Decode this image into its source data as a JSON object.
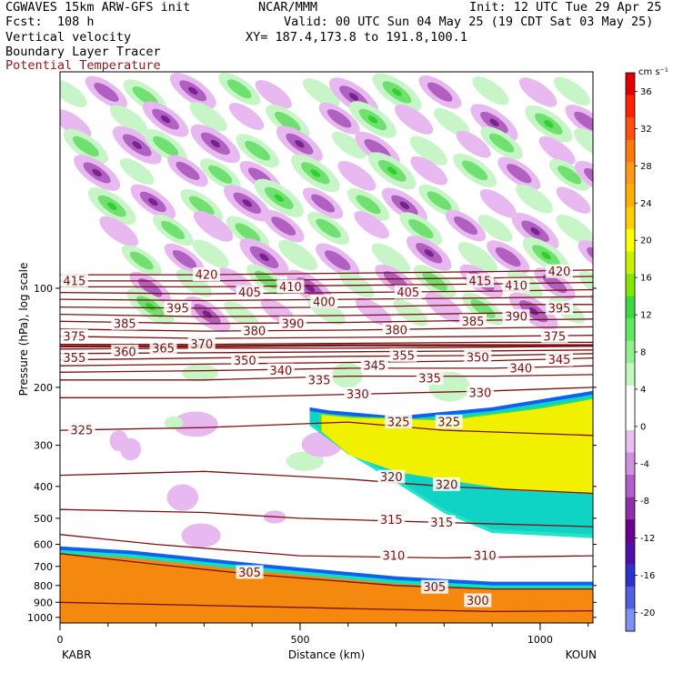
{
  "header": {
    "model": "CGWAVES 15km ARW-GFS init",
    "org": "NCAR/MMM",
    "init": "Init: 12 UTC Tue 29 Apr 25",
    "fcst": "Fcst:  108 h",
    "valid": "Valid: 00 UTC Sun 04 May 25 (19 CDT Sat 03 May 25)",
    "field1": "Vertical velocity",
    "xy": "XY= 187.4,173.8 to 191.8,100.1",
    "field2": "Boundary Layer Tracer",
    "field3": "Potential Temperature"
  },
  "colors": {
    "theta": "#7a1010",
    "tracer_orange": "#f5880f",
    "tracer_yellow": "#f0f000",
    "tracer_green": "#40e040",
    "tracer_cyan": "#10e0c0",
    "tracer_blue": "#1060f0",
    "w_up_light": "#c8f5c8",
    "w_up_mid": "#70e070",
    "w_up_strong": "#30d030",
    "w_down_light": "#e8b8f0",
    "w_down_mid": "#b060c0",
    "w_down_strong": "#7a2090"
  },
  "chart_data": {
    "type": "heatmap",
    "xlabel": "Distance (km)",
    "ylabel": "Pressure (hPa), log scale",
    "xlim": [
      0,
      1110
    ],
    "ylim": [
      1040,
      22
    ],
    "y_scale": "log",
    "x_ticks": [
      0,
      500,
      1000
    ],
    "x_tick_labels": [
      "0",
      "500",
      "1000"
    ],
    "y_ticks": [
      100,
      200,
      300,
      400,
      500,
      600,
      700,
      800,
      900,
      1000
    ],
    "y_tick_labels": [
      "100",
      "200",
      "300",
      "400",
      "500",
      "600",
      "700",
      "800",
      "900",
      "1000"
    ],
    "endpoints": {
      "left": "KABR",
      "right": "KOUN"
    },
    "colorbar": {
      "units": "cm s⁻¹",
      "ticks": [
        36,
        32,
        28,
        24,
        20,
        16,
        12,
        8,
        4,
        0,
        -4,
        -8,
        -12,
        -16,
        -20
      ],
      "tick_labels": [
        "36",
        "32",
        "28",
        "24",
        "20",
        "16",
        "12",
        "8",
        "4",
        "0",
        "-4",
        "-8",
        "-12",
        "-16",
        "-20"
      ],
      "colors": [
        "#e00000",
        "#ff2000",
        "#ff5010",
        "#ff7810",
        "#ff9a18",
        "#ffb000",
        "#ffd000",
        "#ffff00",
        "#c8f000",
        "#80e800",
        "#40d840",
        "#60e860",
        "#90f090",
        "#c0f8c0",
        "#ffffff",
        "#ffffff",
        "#e8c0f0",
        "#d090e0",
        "#b060c8",
        "#9030a8",
        "#6a0090",
        "#5010a8",
        "#3030d0",
        "#5060e0",
        "#8090f0"
      ]
    },
    "theta_contours": [
      {
        "value": 300,
        "label": "300",
        "points": [
          [
            0,
            900
          ],
          [
            300,
            920
          ],
          [
            600,
            940
          ],
          [
            900,
            960
          ],
          [
            1110,
            955
          ]
        ]
      },
      {
        "value": 305,
        "label": "305",
        "points": [
          [
            0,
            640
          ],
          [
            200,
            690
          ],
          [
            400,
            740
          ],
          [
            700,
            800
          ],
          [
            900,
            820
          ],
          [
            1110,
            820
          ]
        ]
      },
      {
        "value": 310,
        "label": "310",
        "points": [
          [
            0,
            560
          ],
          [
            200,
            600
          ],
          [
            500,
            650
          ],
          [
            800,
            660
          ],
          [
            1110,
            650
          ]
        ]
      },
      {
        "value": 315,
        "label": "315",
        "points": [
          [
            0,
            470
          ],
          [
            300,
            480
          ],
          [
            500,
            500
          ],
          [
            700,
            510
          ],
          [
            1110,
            530
          ]
        ]
      },
      {
        "value": 320,
        "label": "320",
        "points": [
          [
            0,
            370
          ],
          [
            300,
            360
          ],
          [
            600,
            380
          ],
          [
            800,
            400
          ],
          [
            1110,
            420
          ]
        ]
      },
      {
        "value": 325,
        "label": "325",
        "points": [
          [
            0,
            270
          ],
          [
            300,
            265
          ],
          [
            600,
            255
          ],
          [
            800,
            270
          ],
          [
            1110,
            280
          ]
        ]
      },
      {
        "value": 330,
        "label": "330",
        "points": [
          [
            0,
            215
          ],
          [
            300,
            215
          ],
          [
            600,
            210
          ],
          [
            900,
            205
          ],
          [
            1110,
            200
          ]
        ]
      },
      {
        "value": 335,
        "label": "335",
        "points": [
          [
            0,
            190
          ],
          [
            300,
            190
          ],
          [
            600,
            185
          ],
          [
            900,
            185
          ],
          [
            1110,
            183
          ]
        ]
      },
      {
        "value": 340,
        "label": "340",
        "points": [
          [
            0,
            180
          ],
          [
            300,
            178
          ],
          [
            600,
            175
          ],
          [
            900,
            175
          ],
          [
            1110,
            172
          ]
        ]
      },
      {
        "value": 345,
        "label": "345",
        "points": [
          [
            0,
            172
          ],
          [
            300,
            170
          ],
          [
            600,
            168
          ],
          [
            900,
            166
          ],
          [
            1110,
            163
          ]
        ]
      },
      {
        "value": 350,
        "label": "350",
        "points": [
          [
            0,
            165
          ],
          [
            300,
            163
          ],
          [
            600,
            161
          ],
          [
            900,
            160
          ],
          [
            1110,
            158
          ]
        ]
      },
      {
        "value": 355,
        "label": "355",
        "points": [
          [
            0,
            158
          ],
          [
            300,
            157
          ],
          [
            600,
            156
          ],
          [
            900,
            155
          ],
          [
            1110,
            154
          ]
        ]
      },
      {
        "value": 360,
        "label": "360",
        "points": [
          [
            0,
            153
          ],
          [
            300,
            152
          ],
          [
            600,
            152
          ],
          [
            900,
            151
          ],
          [
            1110,
            150
          ]
        ]
      },
      {
        "value": 365,
        "label": "365",
        "points": [
          [
            0,
            150
          ],
          [
            300,
            150
          ],
          [
            600,
            149
          ],
          [
            900,
            149
          ],
          [
            1110,
            149
          ]
        ]
      },
      {
        "value": 370,
        "label": "370",
        "points": [
          [
            0,
            148
          ],
          [
            300,
            148
          ],
          [
            600,
            147
          ],
          [
            900,
            146
          ],
          [
            1110,
            146
          ]
        ]
      },
      {
        "value": 375,
        "label": "375",
        "points": [
          [
            0,
            140
          ],
          [
            300,
            142
          ],
          [
            600,
            141
          ],
          [
            900,
            140
          ],
          [
            1110,
            139
          ]
        ]
      },
      {
        "value": 380,
        "label": "380",
        "points": [
          [
            0,
            133
          ],
          [
            300,
            135
          ],
          [
            600,
            134
          ],
          [
            900,
            132
          ],
          [
            1110,
            131
          ]
        ]
      },
      {
        "value": 385,
        "label": "385",
        "points": [
          [
            0,
            126
          ],
          [
            300,
            128
          ],
          [
            600,
            127
          ],
          [
            900,
            125
          ],
          [
            1110,
            124
          ]
        ]
      },
      {
        "value": 390,
        "label": "390",
        "points": [
          [
            0,
            120
          ],
          [
            300,
            122
          ],
          [
            600,
            121
          ],
          [
            900,
            119
          ],
          [
            1110,
            118
          ]
        ]
      },
      {
        "value": 395,
        "label": "395",
        "points": [
          [
            0,
            114
          ],
          [
            300,
            115
          ],
          [
            600,
            114
          ],
          [
            900,
            112
          ],
          [
            1110,
            112
          ]
        ]
      },
      {
        "value": 400,
        "label": "400",
        "points": [
          [
            0,
            108
          ],
          [
            300,
            109
          ],
          [
            600,
            108
          ],
          [
            900,
            107
          ],
          [
            1110,
            106
          ]
        ]
      },
      {
        "value": 405,
        "label": "405",
        "points": [
          [
            0,
            103
          ],
          [
            300,
            104
          ],
          [
            600,
            103
          ],
          [
            900,
            102
          ],
          [
            1110,
            101
          ]
        ]
      },
      {
        "value": 410,
        "label": "410",
        "points": [
          [
            0,
            99
          ],
          [
            300,
            99
          ],
          [
            600,
            98
          ],
          [
            900,
            97
          ],
          [
            1110,
            96
          ]
        ]
      },
      {
        "value": 415,
        "label": "415",
        "points": [
          [
            0,
            95
          ],
          [
            300,
            95
          ],
          [
            600,
            94
          ],
          [
            900,
            93
          ],
          [
            1110,
            92
          ]
        ]
      },
      {
        "value": 420,
        "label": "420",
        "points": [
          [
            0,
            91
          ],
          [
            300,
            91
          ],
          [
            600,
            90
          ],
          [
            900,
            89
          ],
          [
            1110,
            88
          ]
        ]
      }
    ],
    "theta_labels": [
      {
        "text": "415",
        "x": 30,
        "p": 95
      },
      {
        "text": "420",
        "x": 305,
        "p": 91
      },
      {
        "text": "405",
        "x": 395,
        "p": 103
      },
      {
        "text": "410",
        "x": 480,
        "p": 99
      },
      {
        "text": "405",
        "x": 725,
        "p": 103
      },
      {
        "text": "415",
        "x": 875,
        "p": 95
      },
      {
        "text": "410",
        "x": 950,
        "p": 98
      },
      {
        "text": "420",
        "x": 1040,
        "p": 89
      },
      {
        "text": "385",
        "x": 135,
        "p": 128
      },
      {
        "text": "395",
        "x": 245,
        "p": 115
      },
      {
        "text": "400",
        "x": 550,
        "p": 110
      },
      {
        "text": "380",
        "x": 405,
        "p": 135
      },
      {
        "text": "390",
        "x": 485,
        "p": 128
      },
      {
        "text": "380",
        "x": 700,
        "p": 134
      },
      {
        "text": "385",
        "x": 860,
        "p": 126
      },
      {
        "text": "390",
        "x": 950,
        "p": 122
      },
      {
        "text": "395",
        "x": 1040,
        "p": 115
      },
      {
        "text": "375",
        "x": 30,
        "p": 140
      },
      {
        "text": "375",
        "x": 1030,
        "p": 140
      },
      {
        "text": "370",
        "x": 295,
        "p": 148
      },
      {
        "text": "365",
        "x": 215,
        "p": 152
      },
      {
        "text": "360",
        "x": 135,
        "p": 156
      },
      {
        "text": "355",
        "x": 30,
        "p": 163
      },
      {
        "text": "350",
        "x": 385,
        "p": 166
      },
      {
        "text": "355",
        "x": 715,
        "p": 160
      },
      {
        "text": "350",
        "x": 870,
        "p": 162
      },
      {
        "text": "345",
        "x": 1040,
        "p": 165
      },
      {
        "text": "340",
        "x": 460,
        "p": 178
      },
      {
        "text": "345",
        "x": 655,
        "p": 172
      },
      {
        "text": "340",
        "x": 960,
        "p": 175
      },
      {
        "text": "335",
        "x": 540,
        "p": 190
      },
      {
        "text": "335",
        "x": 770,
        "p": 188
      },
      {
        "text": "330",
        "x": 620,
        "p": 210
      },
      {
        "text": "330",
        "x": 875,
        "p": 208
      },
      {
        "text": "325",
        "x": 45,
        "p": 270
      },
      {
        "text": "325",
        "x": 705,
        "p": 255
      },
      {
        "text": "325",
        "x": 810,
        "p": 255
      },
      {
        "text": "320",
        "x": 690,
        "p": 375
      },
      {
        "text": "320",
        "x": 805,
        "p": 395
      },
      {
        "text": "315",
        "x": 690,
        "p": 505
      },
      {
        "text": "315",
        "x": 795,
        "p": 515
      },
      {
        "text": "310",
        "x": 695,
        "p": 650
      },
      {
        "text": "310",
        "x": 885,
        "p": 650
      },
      {
        "text": "305",
        "x": 395,
        "p": 730
      },
      {
        "text": "305",
        "x": 780,
        "p": 810
      },
      {
        "text": "300",
        "x": 870,
        "p": 890
      }
    ],
    "tracer_regions": [
      {
        "name": "boundary-layer",
        "color_key": "tracer_orange",
        "points": [
          [
            0,
            1040
          ],
          [
            0,
            640
          ],
          [
            150,
            660
          ],
          [
            400,
            720
          ],
          [
            700,
            790
          ],
          [
            900,
            820
          ],
          [
            1110,
            820
          ],
          [
            1110,
            1040
          ]
        ]
      },
      {
        "name": "elevated-plume",
        "color_key": "tracer_yellow",
        "points": [
          [
            540,
            240
          ],
          [
            600,
            245
          ],
          [
            800,
            250
          ],
          [
            1000,
            230
          ],
          [
            1110,
            215
          ],
          [
            1110,
            420
          ],
          [
            950,
            410
          ],
          [
            800,
            380
          ],
          [
            700,
            360
          ],
          [
            600,
            320
          ],
          [
            540,
            270
          ]
        ]
      },
      {
        "name": "plume-edge",
        "color_key": "tracer_blue",
        "points": [
          [
            520,
            230
          ],
          [
            560,
            235
          ],
          [
            700,
            245
          ],
          [
            900,
            230
          ],
          [
            1110,
            205
          ],
          [
            1110,
            560
          ],
          [
            900,
            540
          ],
          [
            800,
            470
          ],
          [
            700,
            380
          ],
          [
            600,
            310
          ],
          [
            520,
            255
          ]
        ]
      }
    ]
  }
}
